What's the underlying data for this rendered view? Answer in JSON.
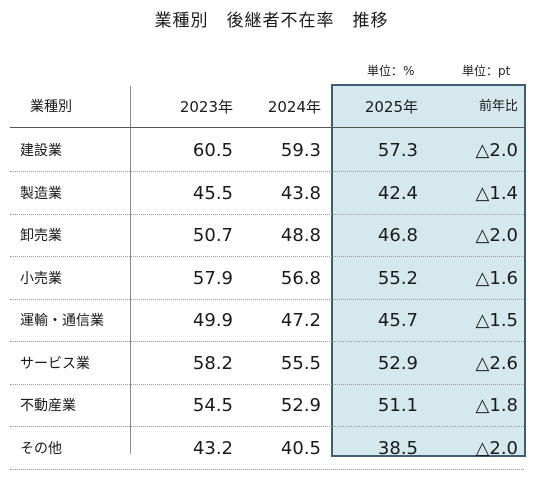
{
  "title": "業種別　後継者不在率　推移",
  "units": {
    "rate": "単位：%",
    "diff": "単位：pt"
  },
  "colors": {
    "highlight_fill": "#d4e8ee",
    "highlight_border": "#3f5e76"
  },
  "chart_data": {
    "type": "table",
    "columns": [
      "業種別",
      "2023年",
      "2024年",
      "2025年",
      "前年比"
    ],
    "highlighted_columns": [
      "2025年",
      "前年比"
    ],
    "rows": [
      [
        "建設業",
        "60.5",
        "59.3",
        "57.3",
        "△2.0"
      ],
      [
        "製造業",
        "45.5",
        "43.8",
        "42.4",
        "△1.4"
      ],
      [
        "卸売業",
        "50.7",
        "48.8",
        "46.8",
        "△2.0"
      ],
      [
        "小売業",
        "57.9",
        "56.8",
        "55.2",
        "△1.6"
      ],
      [
        "運輸・通信業",
        "49.9",
        "47.2",
        "45.7",
        "△1.5"
      ],
      [
        "サービス業",
        "58.2",
        "55.5",
        "52.9",
        "△2.6"
      ],
      [
        "不動産業",
        "54.5",
        "52.9",
        "51.1",
        "△1.8"
      ],
      [
        "その他",
        "43.2",
        "40.5",
        "38.5",
        "△2.0"
      ]
    ]
  }
}
